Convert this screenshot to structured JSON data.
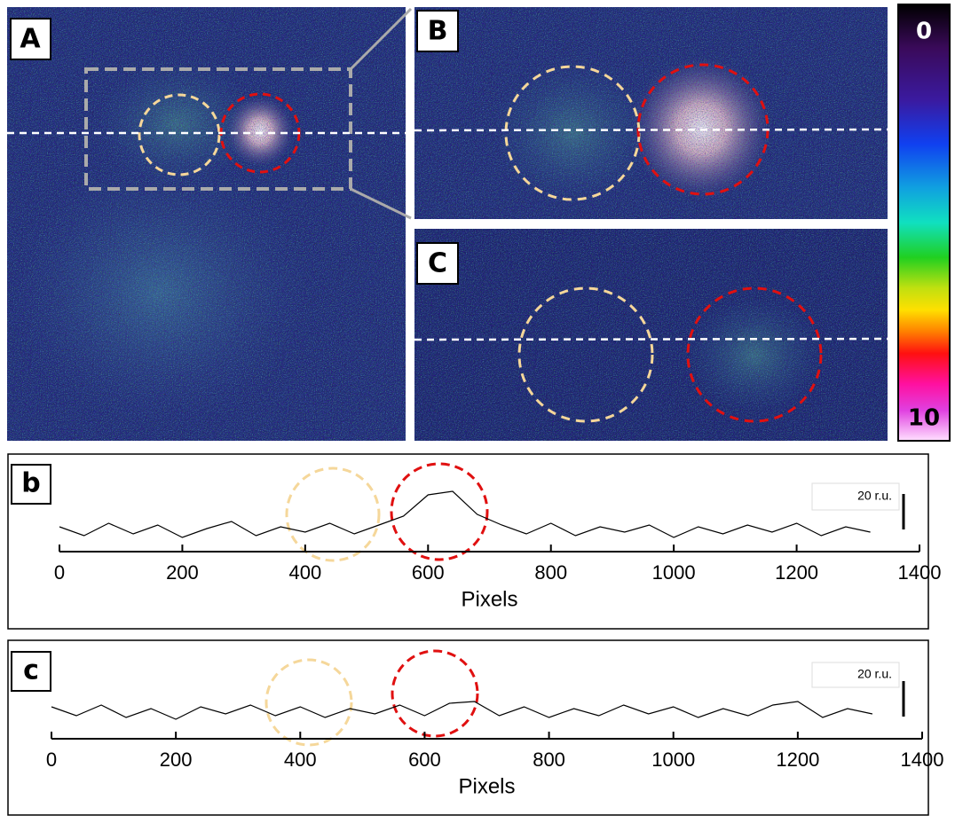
{
  "panel_labels": [
    "A",
    "B",
    "C"
  ],
  "colorbar_labels": [
    "0",
    "10"
  ],
  "chart_data": [
    {
      "type": "line",
      "panel_label": "b",
      "x_label": "Pixels",
      "xlim": [
        0,
        1400
      ],
      "xticks": [
        0,
        200,
        400,
        600,
        800,
        1000,
        1200,
        1400
      ],
      "ylim": [
        -12,
        38
      ],
      "color": "#000000",
      "scale_bar": {
        "value": 20,
        "label": "20 r.u."
      },
      "x": [
        0,
        40,
        80,
        120,
        160,
        200,
        240,
        280,
        320,
        360,
        400,
        440,
        480,
        520,
        560,
        600,
        640,
        680,
        720,
        760,
        800,
        840,
        880,
        920,
        960,
        1000,
        1040,
        1080,
        1120,
        1160,
        1200,
        1240,
        1280,
        1320
      ],
      "values": [
        2,
        -3,
        4,
        -2,
        3,
        -4,
        1,
        5,
        -3,
        2,
        -1,
        4,
        -2,
        3,
        8,
        20,
        22,
        9,
        3,
        -2,
        4,
        -3,
        2,
        -1,
        3,
        -4,
        2,
        -2,
        3,
        -1,
        4,
        -3,
        2,
        -1
      ]
    },
    {
      "type": "line",
      "panel_label": "c",
      "x_label": "Pixels",
      "xlim": [
        0,
        1400
      ],
      "xticks": [
        0,
        200,
        400,
        600,
        800,
        1000,
        1200,
        1400
      ],
      "ylim": [
        -15,
        35
      ],
      "color": "#000000",
      "scale_bar": {
        "value": 20,
        "label": "20 r.u."
      },
      "x": [
        0,
        40,
        80,
        120,
        160,
        200,
        240,
        280,
        320,
        360,
        400,
        440,
        480,
        520,
        560,
        600,
        640,
        680,
        720,
        760,
        800,
        840,
        880,
        920,
        960,
        1000,
        1040,
        1080,
        1120,
        1160,
        1200,
        1240,
        1280,
        1320
      ],
      "values": [
        3,
        -2,
        4,
        -3,
        2,
        -4,
        3,
        -1,
        4,
        -2,
        3,
        -3,
        2,
        -1,
        4,
        -2,
        5,
        6,
        -2,
        3,
        -3,
        2,
        -2,
        4,
        -1,
        3,
        -3,
        2,
        -2,
        4,
        6,
        -3,
        2,
        -1
      ]
    }
  ]
}
